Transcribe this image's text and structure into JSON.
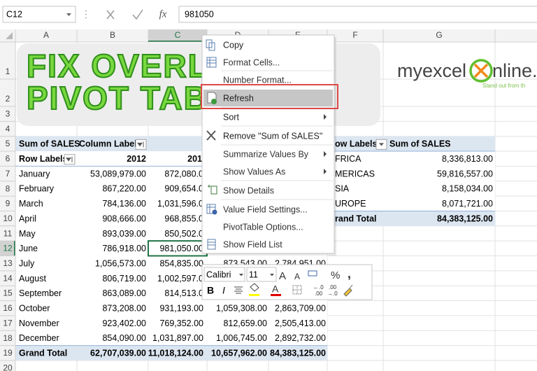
{
  "formula_bar": {
    "name_box": "C12",
    "fx": "fx",
    "formula": "981050"
  },
  "columns": [
    "A",
    "B",
    "C",
    "D",
    "E",
    "F",
    "G"
  ],
  "rows": [
    "1",
    "2",
    "3",
    "4",
    "5",
    "6",
    "7",
    "8",
    "9",
    "10",
    "11",
    "12",
    "13",
    "14",
    "15",
    "16",
    "17",
    "18",
    "19",
    "20"
  ],
  "banner": {
    "line1": "FIX OVERLA",
    "line2": "PIVOT TABL",
    "logo_a": "myexcel",
    "logo_b": "nline.co",
    "tagline": "Stand out from th"
  },
  "pivot1": {
    "header": [
      "Sum of SALES",
      "Column Labels"
    ],
    "subheader": [
      "Row Labels",
      "2012",
      "201"
    ],
    "rows": [
      [
        "January",
        "53,089,979.00",
        "872,080.0",
        null,
        null
      ],
      [
        "February",
        "867,220.00",
        "909,654.0",
        null,
        null
      ],
      [
        "March",
        "784,136.00",
        "1,031,596.0",
        null,
        null
      ],
      [
        "April",
        "908,666.00",
        "968,855.0",
        null,
        null
      ],
      [
        "May",
        "893,039.00",
        "850,502.0",
        null,
        null
      ],
      [
        "June",
        "786,918.00",
        "981,050.00",
        null,
        null
      ],
      [
        "July",
        "1,056,573.00",
        "854,835.00",
        "873,543.00",
        "2,784,951.00"
      ],
      [
        "August",
        "806,719.00",
        "1,002,597.0",
        null,
        null
      ],
      [
        "September",
        "863,089.00",
        "814,513.0",
        null,
        null
      ],
      [
        "October",
        "873,208.00",
        "931,193.00",
        "1,059,308.00",
        "2,863,709.00"
      ],
      [
        "November",
        "923,402.00",
        "769,352.00",
        "812,659.00",
        "2,505,413.00"
      ],
      [
        "December",
        "854,090.00",
        "1,031,897.00",
        "1,006,745.00",
        "2,892,732.00"
      ]
    ],
    "total": [
      "Grand Total",
      "62,707,039.00",
      "11,018,124.00",
      "10,657,962.00",
      "84,383,125.00"
    ]
  },
  "pivot2": {
    "header": [
      "ow Labels",
      "Sum of SALES"
    ],
    "rows": [
      [
        "FRICA",
        "8,336,813.00"
      ],
      [
        "MERICAS",
        "59,816,557.00"
      ],
      [
        "SIA",
        "8,158,034.00"
      ],
      [
        "UROPE",
        "8,071,721.00"
      ]
    ],
    "total": [
      "rand Total",
      "84,383,125.00"
    ]
  },
  "context_menu": {
    "items": [
      "Copy",
      "Format Cells...",
      "Number Format...",
      "Refresh",
      "Sort",
      "Remove \"Sum of SALES\"",
      "Summarize Values By",
      "Show Values As",
      "Show Details",
      "Value Field Settings...",
      "PivotTable Options...",
      "Show Field List"
    ]
  },
  "mini_toolbar": {
    "font": "Calibri",
    "size": "11",
    "grow": "A",
    "shrink": "A",
    "percent": "%",
    "comma": ",",
    "bold": "B",
    "italic": "I",
    "font_color": "A",
    "dec_inc_a": "←.0",
    "dec_inc_b": ".00",
    "dec_dec_a": ".00",
    "dec_dec_b": "→.0"
  }
}
